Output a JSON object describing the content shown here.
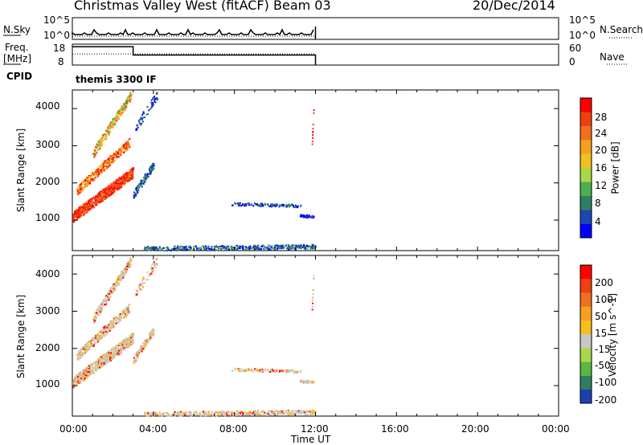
{
  "header": {
    "title": "Christmas Valley West (fitACF)",
    "beam": "Beam 03",
    "date": "20/Dec/2014"
  },
  "labels": {
    "nsky": "N.Sky",
    "nsearch": "N.Search",
    "freq": "Freq.",
    "mhz": "[MHz]",
    "nave": "Nave",
    "cpid": "CPID",
    "cpid_value": "themis 3300 IF"
  },
  "chart_data": [
    {
      "type": "line",
      "name_label": "N.Sky / N.Search",
      "yticks_left": [
        "10^5",
        "10^0"
      ],
      "yticks_right": [
        "10^5",
        "10^0"
      ],
      "xlim": [
        0,
        24
      ],
      "data_end_hour": 12
    },
    {
      "type": "line",
      "yticks_left": [
        "18",
        "8"
      ],
      "yticks_right": [
        "60",
        "0"
      ],
      "ylim_left": [
        8,
        18
      ],
      "ylim_right": [
        0,
        60
      ],
      "freq_steps": [
        {
          "from": 0,
          "to": 3,
          "value": 16.8
        },
        {
          "from": 3,
          "to": 12,
          "value": 12.8
        }
      ],
      "nave_dotted": 32,
      "xlim": [
        0,
        24
      ]
    },
    {
      "type": "heatmap",
      "ylabel": "Slant Range [km]",
      "yticks": [
        1000,
        2000,
        3000,
        4000
      ],
      "ylim": [
        180,
        4500
      ],
      "xlim": [
        0,
        24
      ],
      "colorbar_label": "Power [dB]",
      "colorbar_ticks": [
        "28",
        "24",
        "20",
        "16",
        "12",
        "8",
        "4"
      ],
      "colors": [
        "#0000ff",
        "#1e46b4",
        "#2f7f5f",
        "#4caf50",
        "#a8d84a",
        "#f0c020",
        "#f5a020",
        "#f07020",
        "#ee4010",
        "#ff0000"
      ]
    },
    {
      "type": "heatmap",
      "ylabel": "Slant Range [km]",
      "xlabel": "Time UT",
      "yticks": [
        1000,
        2000,
        3000,
        4000
      ],
      "ylim": [
        180,
        4500
      ],
      "xlim": [
        0,
        24
      ],
      "xticks": [
        "00:00",
        "04:00",
        "08:00",
        "12:00",
        "16:00",
        "20:00",
        "00:00"
      ],
      "colorbar_label": "Velocity [m s^-1]",
      "colorbar_ticks": [
        "200",
        "100",
        "50",
        "15",
        "-15",
        "-50",
        "-100",
        "-200"
      ],
      "colors": [
        "#1e3fb4",
        "#2f7f5f",
        "#58b840",
        "#a8d84a",
        "#c8c8c8",
        "#f5c020",
        "#f5a020",
        "#ef7020",
        "#ee4010",
        "#ff0000"
      ]
    }
  ]
}
